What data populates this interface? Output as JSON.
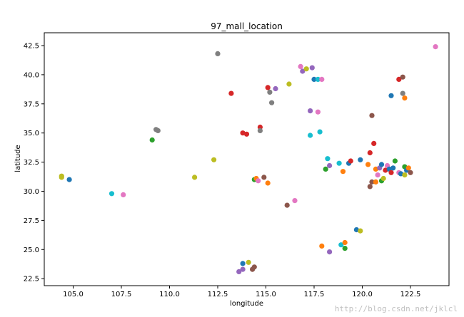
{
  "chart_data": {
    "type": "scatter",
    "title": "97_mall_location",
    "xlabel": "longitude",
    "ylabel": "latitude",
    "xlim": [
      103.5,
      124.5
    ],
    "ylim": [
      21.9,
      43.6
    ],
    "xticks": [
      105.0,
      107.5,
      110.0,
      112.5,
      115.0,
      117.5,
      120.0,
      122.5
    ],
    "yticks": [
      22.5,
      25.0,
      27.5,
      30.0,
      32.5,
      35.0,
      37.5,
      40.0,
      42.5
    ],
    "xtick_labels": [
      "105.0",
      "107.5",
      "110.0",
      "112.5",
      "115.0",
      "117.5",
      "120.0",
      "122.5"
    ],
    "ytick_labels": [
      "22.5",
      "25.0",
      "27.5",
      "30.0",
      "32.5",
      "35.0",
      "37.5",
      "40.0",
      "42.5"
    ],
    "grid": false,
    "legend": "none",
    "palette": [
      "#1f77b4",
      "#ff7f0e",
      "#2ca02c",
      "#d62728",
      "#9467bd",
      "#8c564b",
      "#e377c2",
      "#7f7f7f",
      "#bcbd22",
      "#17becf"
    ],
    "points": [
      {
        "x": 104.4,
        "y": 31.3,
        "color": "#bcbd22"
      },
      {
        "x": 104.4,
        "y": 31.2,
        "color": "#bcbd22"
      },
      {
        "x": 104.8,
        "y": 31.0,
        "color": "#1f77b4"
      },
      {
        "x": 107.0,
        "y": 29.8,
        "color": "#17becf"
      },
      {
        "x": 107.6,
        "y": 29.7,
        "color": "#e377c2"
      },
      {
        "x": 109.1,
        "y": 34.4,
        "color": "#2ca02c"
      },
      {
        "x": 109.3,
        "y": 35.3,
        "color": "#7f7f7f"
      },
      {
        "x": 109.4,
        "y": 35.2,
        "color": "#7f7f7f"
      },
      {
        "x": 111.3,
        "y": 31.2,
        "color": "#bcbd22"
      },
      {
        "x": 112.3,
        "y": 32.7,
        "color": "#bcbd22"
      },
      {
        "x": 112.5,
        "y": 41.8,
        "color": "#7f7f7f"
      },
      {
        "x": 113.2,
        "y": 38.4,
        "color": "#d62728"
      },
      {
        "x": 113.6,
        "y": 23.1,
        "color": "#9467bd"
      },
      {
        "x": 113.8,
        "y": 23.3,
        "color": "#9467bd"
      },
      {
        "x": 113.8,
        "y": 23.8,
        "color": "#1f77b4"
      },
      {
        "x": 113.8,
        "y": 35.0,
        "color": "#d62728"
      },
      {
        "x": 114.0,
        "y": 34.9,
        "color": "#d62728"
      },
      {
        "x": 114.1,
        "y": 23.9,
        "color": "#bcbd22"
      },
      {
        "x": 114.3,
        "y": 23.3,
        "color": "#8c564b"
      },
      {
        "x": 114.4,
        "y": 23.5,
        "color": "#8c564b"
      },
      {
        "x": 114.4,
        "y": 31.0,
        "color": "#2ca02c"
      },
      {
        "x": 114.5,
        "y": 31.1,
        "color": "#ff7f0e"
      },
      {
        "x": 114.6,
        "y": 30.9,
        "color": "#e377c2"
      },
      {
        "x": 114.7,
        "y": 35.5,
        "color": "#d62728"
      },
      {
        "x": 114.7,
        "y": 35.2,
        "color": "#7f7f7f"
      },
      {
        "x": 114.9,
        "y": 31.2,
        "color": "#8c564b"
      },
      {
        "x": 115.1,
        "y": 30.7,
        "color": "#ff7f0e"
      },
      {
        "x": 115.1,
        "y": 38.9,
        "color": "#d62728"
      },
      {
        "x": 115.2,
        "y": 38.5,
        "color": "#7f7f7f"
      },
      {
        "x": 115.3,
        "y": 37.6,
        "color": "#7f7f7f"
      },
      {
        "x": 115.5,
        "y": 38.8,
        "color": "#9467bd"
      },
      {
        "x": 116.1,
        "y": 28.8,
        "color": "#8c564b"
      },
      {
        "x": 116.2,
        "y": 39.2,
        "color": "#bcbd22"
      },
      {
        "x": 116.5,
        "y": 29.2,
        "color": "#e377c2"
      },
      {
        "x": 116.8,
        "y": 40.7,
        "color": "#e377c2"
      },
      {
        "x": 116.9,
        "y": 40.3,
        "color": "#9467bd"
      },
      {
        "x": 117.1,
        "y": 40.5,
        "color": "#bcbd22"
      },
      {
        "x": 117.3,
        "y": 36.9,
        "color": "#9467bd"
      },
      {
        "x": 117.3,
        "y": 34.8,
        "color": "#17becf"
      },
      {
        "x": 117.4,
        "y": 40.6,
        "color": "#9467bd"
      },
      {
        "x": 117.5,
        "y": 39.6,
        "color": "#1f77b4"
      },
      {
        "x": 117.7,
        "y": 39.6,
        "color": "#17becf"
      },
      {
        "x": 117.7,
        "y": 36.8,
        "color": "#e377c2"
      },
      {
        "x": 117.8,
        "y": 35.1,
        "color": "#17becf"
      },
      {
        "x": 117.9,
        "y": 39.6,
        "color": "#e377c2"
      },
      {
        "x": 117.9,
        "y": 25.3,
        "color": "#ff7f0e"
      },
      {
        "x": 118.1,
        "y": 31.9,
        "color": "#2ca02c"
      },
      {
        "x": 118.2,
        "y": 32.8,
        "color": "#17becf"
      },
      {
        "x": 118.3,
        "y": 32.2,
        "color": "#9467bd"
      },
      {
        "x": 118.3,
        "y": 24.8,
        "color": "#9467bd"
      },
      {
        "x": 118.8,
        "y": 32.4,
        "color": "#17becf"
      },
      {
        "x": 118.9,
        "y": 25.4,
        "color": "#17becf"
      },
      {
        "x": 119.0,
        "y": 31.7,
        "color": "#ff7f0e"
      },
      {
        "x": 119.1,
        "y": 25.1,
        "color": "#2ca02c"
      },
      {
        "x": 119.1,
        "y": 25.6,
        "color": "#ff7f0e"
      },
      {
        "x": 119.3,
        "y": 32.4,
        "color": "#1f77b4"
      },
      {
        "x": 119.4,
        "y": 32.6,
        "color": "#d62728"
      },
      {
        "x": 119.7,
        "y": 26.7,
        "color": "#1f77b4"
      },
      {
        "x": 119.9,
        "y": 26.6,
        "color": "#bcbd22"
      },
      {
        "x": 119.9,
        "y": 32.7,
        "color": "#1f77b4"
      },
      {
        "x": 120.3,
        "y": 32.3,
        "color": "#ff7f0e"
      },
      {
        "x": 120.4,
        "y": 30.4,
        "color": "#8c564b"
      },
      {
        "x": 120.4,
        "y": 33.3,
        "color": "#d62728"
      },
      {
        "x": 120.5,
        "y": 36.5,
        "color": "#8c564b"
      },
      {
        "x": 120.5,
        "y": 30.8,
        "color": "#8c564b"
      },
      {
        "x": 120.6,
        "y": 34.1,
        "color": "#d62728"
      },
      {
        "x": 120.7,
        "y": 31.9,
        "color": "#ff7f0e"
      },
      {
        "x": 120.7,
        "y": 30.8,
        "color": "#ff7f0e"
      },
      {
        "x": 120.8,
        "y": 31.4,
        "color": "#e377c2"
      },
      {
        "x": 120.9,
        "y": 32.0,
        "color": "#9467bd"
      },
      {
        "x": 121.0,
        "y": 32.3,
        "color": "#1f77b4"
      },
      {
        "x": 121.0,
        "y": 30.9,
        "color": "#2ca02c"
      },
      {
        "x": 121.1,
        "y": 31.1,
        "color": "#bcbd22"
      },
      {
        "x": 121.2,
        "y": 31.8,
        "color": "#d62728"
      },
      {
        "x": 121.3,
        "y": 32.2,
        "color": "#e377c2"
      },
      {
        "x": 121.4,
        "y": 31.9,
        "color": "#1f77b4"
      },
      {
        "x": 121.5,
        "y": 31.6,
        "color": "#d62728"
      },
      {
        "x": 121.5,
        "y": 38.2,
        "color": "#1f77b4"
      },
      {
        "x": 121.6,
        "y": 32.0,
        "color": "#1f77b4"
      },
      {
        "x": 121.7,
        "y": 32.6,
        "color": "#2ca02c"
      },
      {
        "x": 121.9,
        "y": 31.6,
        "color": "#e377c2"
      },
      {
        "x": 121.9,
        "y": 39.6,
        "color": "#d62728"
      },
      {
        "x": 122.0,
        "y": 31.5,
        "color": "#1f77b4"
      },
      {
        "x": 122.1,
        "y": 39.8,
        "color": "#8c564b"
      },
      {
        "x": 122.1,
        "y": 38.4,
        "color": "#7f7f7f"
      },
      {
        "x": 122.2,
        "y": 32.1,
        "color": "#2ca02c"
      },
      {
        "x": 122.2,
        "y": 38.0,
        "color": "#ff7f0e"
      },
      {
        "x": 122.2,
        "y": 31.4,
        "color": "#bcbd22"
      },
      {
        "x": 122.3,
        "y": 31.8,
        "color": "#1f77b4"
      },
      {
        "x": 122.4,
        "y": 32.0,
        "color": "#ff7f0e"
      },
      {
        "x": 122.5,
        "y": 31.6,
        "color": "#8c564b"
      },
      {
        "x": 123.8,
        "y": 42.4,
        "color": "#e377c2"
      }
    ]
  },
  "watermark": "http://blog.csdn.net/jklcl"
}
